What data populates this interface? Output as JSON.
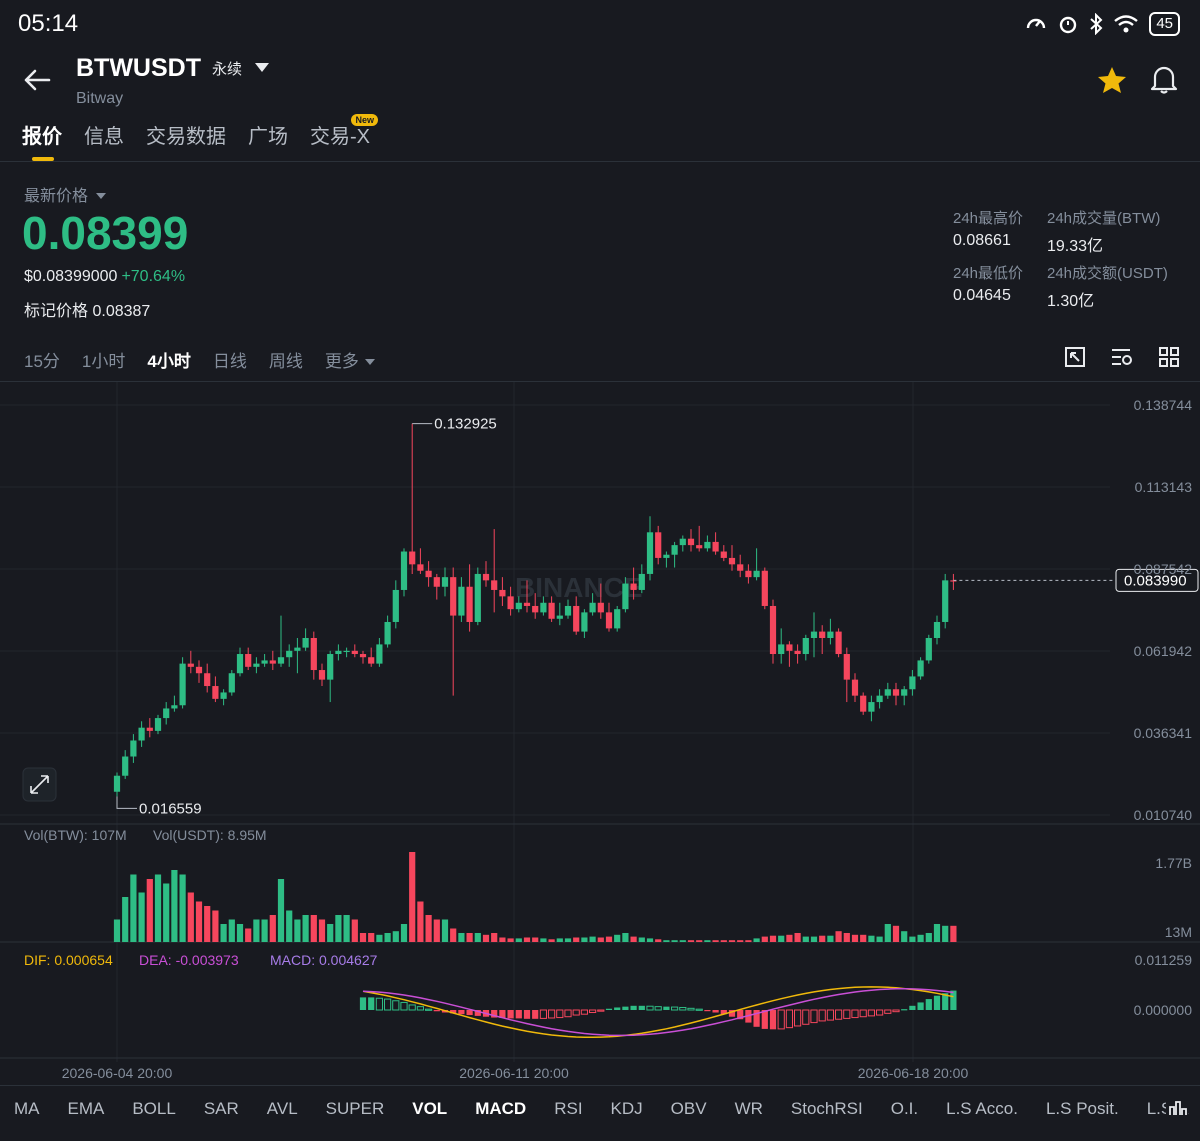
{
  "status": {
    "time": "05:14",
    "battery": "45"
  },
  "header": {
    "symbol": "BTWUSDT",
    "contract": "永续",
    "exchange_name": "Bitway"
  },
  "tabs": [
    {
      "label": "报价",
      "active": true
    },
    {
      "label": "信息"
    },
    {
      "label": "交易数据"
    },
    {
      "label": "广场"
    },
    {
      "label": "交易-X",
      "badge": "New"
    }
  ],
  "price": {
    "latest_label": "最新价格",
    "last": "0.08399",
    "usd": "$0.08399000",
    "change": "+70.64%",
    "mark_label": "标记价格",
    "mark": "0.08387",
    "up_color": "#2ebd85",
    "down_color": "#f6465d"
  },
  "stats": {
    "high_label": "24h最高价",
    "high": "0.08661",
    "low_label": "24h最低价",
    "low": "0.04645",
    "vol_base_label": "24h成交量(BTW)",
    "vol_base": "19.33亿",
    "vol_quote_label": "24h成交额(USDT)",
    "vol_quote": "1.30亿"
  },
  "intervals": [
    "15分",
    "1小时",
    "4小时",
    "日线",
    "周线"
  ],
  "active_interval": "4小时",
  "more_label": "更多",
  "icons": [
    "back-arrow-icon",
    "dropdown-caret-icon",
    "star-icon",
    "bell-icon",
    "fullscreen-icon",
    "settings-list-icon",
    "grid-icon",
    "expand-icon"
  ],
  "chart": {
    "watermark": "BINANCE",
    "price_axis": [
      "0.138744",
      "0.113143",
      "0.087542",
      "0.061942",
      "0.036341",
      "0.010740"
    ],
    "current_price_tag": "0.083990",
    "high_marker": "0.132925",
    "low_marker": "0.016559",
    "vol_label": "Vol(BTW): 107M",
    "vol_usdt_label": "Vol(USDT): 8.95M",
    "vol_axis": [
      "1.77B",
      "13M"
    ],
    "dif_label": "DIF: 0.000654",
    "dea_label": "DEA: -0.003973",
    "macd_label": "MACD: 0.004627",
    "macd_axis": [
      "0.011259",
      "0.000000"
    ],
    "time_labels": [
      "2026-06-04 20:00",
      "2026-06-11 20:00",
      "2026-06-18 20:00"
    ]
  },
  "chart_data": {
    "type": "candlestick",
    "note": "",
    "ylim": [
      0.01074,
      0.138744
    ],
    "ohlc": [
      [
        0.018,
        0.024,
        0.016559,
        0.023
      ],
      [
        0.023,
        0.031,
        0.022,
        0.029
      ],
      [
        0.029,
        0.036,
        0.027,
        0.034
      ],
      [
        0.034,
        0.04,
        0.032,
        0.038
      ],
      [
        0.038,
        0.041,
        0.035,
        0.037
      ],
      [
        0.037,
        0.042,
        0.036,
        0.041
      ],
      [
        0.041,
        0.046,
        0.039,
        0.044
      ],
      [
        0.044,
        0.048,
        0.043,
        0.045
      ],
      [
        0.045,
        0.06,
        0.044,
        0.058
      ],
      [
        0.058,
        0.062,
        0.055,
        0.057
      ],
      [
        0.057,
        0.059,
        0.052,
        0.055
      ],
      [
        0.055,
        0.058,
        0.049,
        0.051
      ],
      [
        0.051,
        0.054,
        0.046,
        0.047
      ],
      [
        0.047,
        0.05,
        0.045,
        0.049
      ],
      [
        0.049,
        0.056,
        0.048,
        0.055
      ],
      [
        0.055,
        0.063,
        0.054,
        0.061
      ],
      [
        0.061,
        0.063,
        0.056,
        0.057
      ],
      [
        0.057,
        0.06,
        0.055,
        0.058
      ],
      [
        0.058,
        0.061,
        0.057,
        0.059
      ],
      [
        0.059,
        0.062,
        0.056,
        0.058
      ],
      [
        0.058,
        0.073,
        0.057,
        0.06
      ],
      [
        0.06,
        0.064,
        0.057,
        0.062
      ],
      [
        0.062,
        0.066,
        0.055,
        0.063
      ],
      [
        0.063,
        0.069,
        0.062,
        0.066
      ],
      [
        0.066,
        0.068,
        0.053,
        0.056
      ],
      [
        0.056,
        0.058,
        0.051,
        0.053
      ],
      [
        0.053,
        0.062,
        0.046,
        0.061
      ],
      [
        0.061,
        0.064,
        0.059,
        0.062
      ],
      [
        0.062,
        0.063,
        0.06,
        0.062
      ],
      [
        0.062,
        0.064,
        0.06,
        0.061
      ],
      [
        0.061,
        0.062,
        0.058,
        0.06
      ],
      [
        0.06,
        0.063,
        0.057,
        0.058
      ],
      [
        0.058,
        0.066,
        0.057,
        0.064
      ],
      [
        0.064,
        0.073,
        0.063,
        0.071
      ],
      [
        0.071,
        0.084,
        0.069,
        0.081
      ],
      [
        0.081,
        0.094,
        0.079,
        0.093
      ],
      [
        0.093,
        0.132925,
        0.086,
        0.089
      ],
      [
        0.089,
        0.094,
        0.086,
        0.087
      ],
      [
        0.087,
        0.09,
        0.082,
        0.085
      ],
      [
        0.085,
        0.086,
        0.078,
        0.082
      ],
      [
        0.082,
        0.088,
        0.079,
        0.085
      ],
      [
        0.085,
        0.088,
        0.048,
        0.073
      ],
      [
        0.073,
        0.085,
        0.071,
        0.082
      ],
      [
        0.082,
        0.089,
        0.068,
        0.071
      ],
      [
        0.071,
        0.088,
        0.07,
        0.086
      ],
      [
        0.086,
        0.09,
        0.082,
        0.084
      ],
      [
        0.084,
        0.1,
        0.074,
        0.081
      ],
      [
        0.081,
        0.085,
        0.076,
        0.079
      ],
      [
        0.079,
        0.082,
        0.073,
        0.075
      ],
      [
        0.075,
        0.079,
        0.074,
        0.077
      ],
      [
        0.077,
        0.084,
        0.074,
        0.076
      ],
      [
        0.076,
        0.08,
        0.072,
        0.074
      ],
      [
        0.074,
        0.079,
        0.073,
        0.077
      ],
      [
        0.077,
        0.079,
        0.071,
        0.072
      ],
      [
        0.072,
        0.077,
        0.07,
        0.073
      ],
      [
        0.073,
        0.078,
        0.072,
        0.076
      ],
      [
        0.076,
        0.079,
        0.067,
        0.068
      ],
      [
        0.068,
        0.075,
        0.066,
        0.074
      ],
      [
        0.074,
        0.08,
        0.073,
        0.077
      ],
      [
        0.077,
        0.083,
        0.072,
        0.074
      ],
      [
        0.074,
        0.077,
        0.068,
        0.069
      ],
      [
        0.069,
        0.076,
        0.068,
        0.075
      ],
      [
        0.075,
        0.085,
        0.074,
        0.083
      ],
      [
        0.083,
        0.088,
        0.078,
        0.081
      ],
      [
        0.081,
        0.089,
        0.08,
        0.086
      ],
      [
        0.086,
        0.104,
        0.084,
        0.099
      ],
      [
        0.099,
        0.101,
        0.089,
        0.091
      ],
      [
        0.091,
        0.093,
        0.088,
        0.092
      ],
      [
        0.092,
        0.096,
        0.088,
        0.095
      ],
      [
        0.095,
        0.098,
        0.093,
        0.097
      ],
      [
        0.097,
        0.1,
        0.093,
        0.095
      ],
      [
        0.095,
        0.101,
        0.093,
        0.094
      ],
      [
        0.094,
        0.098,
        0.093,
        0.096
      ],
      [
        0.096,
        0.099,
        0.092,
        0.093
      ],
      [
        0.093,
        0.095,
        0.09,
        0.091
      ],
      [
        0.091,
        0.095,
        0.087,
        0.089
      ],
      [
        0.089,
        0.092,
        0.085,
        0.087
      ],
      [
        0.087,
        0.089,
        0.083,
        0.085
      ],
      [
        0.085,
        0.094,
        0.084,
        0.087
      ],
      [
        0.087,
        0.088,
        0.075,
        0.076
      ],
      [
        0.076,
        0.078,
        0.058,
        0.061
      ],
      [
        0.061,
        0.069,
        0.058,
        0.064
      ],
      [
        0.064,
        0.065,
        0.057,
        0.062
      ],
      [
        0.062,
        0.064,
        0.058,
        0.061
      ],
      [
        0.061,
        0.067,
        0.059,
        0.066
      ],
      [
        0.066,
        0.074,
        0.06,
        0.068
      ],
      [
        0.068,
        0.07,
        0.061,
        0.066
      ],
      [
        0.066,
        0.072,
        0.064,
        0.068
      ],
      [
        0.068,
        0.069,
        0.06,
        0.061
      ],
      [
        0.061,
        0.063,
        0.046,
        0.053
      ],
      [
        0.053,
        0.055,
        0.046,
        0.048
      ],
      [
        0.048,
        0.049,
        0.042,
        0.043
      ],
      [
        0.043,
        0.048,
        0.04,
        0.046
      ],
      [
        0.046,
        0.05,
        0.044,
        0.048
      ],
      [
        0.048,
        0.052,
        0.047,
        0.05
      ],
      [
        0.05,
        0.052,
        0.045,
        0.048
      ],
      [
        0.048,
        0.051,
        0.045,
        0.05
      ],
      [
        0.05,
        0.056,
        0.048,
        0.054
      ],
      [
        0.054,
        0.06,
        0.053,
        0.059
      ],
      [
        0.059,
        0.067,
        0.058,
        0.066
      ],
      [
        0.066,
        0.073,
        0.064,
        0.071
      ],
      [
        0.071,
        0.086,
        0.069,
        0.084
      ],
      [
        0.084,
        0.086,
        0.081,
        0.08399
      ]
    ],
    "volume_relative": [
      0.25,
      0.5,
      0.75,
      0.55,
      0.7,
      0.75,
      0.65,
      0.8,
      0.75,
      0.55,
      0.45,
      0.4,
      0.35,
      0.2,
      0.25,
      0.2,
      0.15,
      0.25,
      0.25,
      0.3,
      0.7,
      0.35,
      0.25,
      0.3,
      0.3,
      0.25,
      0.2,
      0.3,
      0.3,
      0.25,
      0.1,
      0.1,
      0.08,
      0.1,
      0.12,
      0.2,
      1.0,
      0.45,
      0.3,
      0.25,
      0.25,
      0.15,
      0.1,
      0.1,
      0.1,
      0.08,
      0.1,
      0.05,
      0.04,
      0.04,
      0.05,
      0.05,
      0.04,
      0.03,
      0.04,
      0.04,
      0.05,
      0.05,
      0.06,
      0.05,
      0.06,
      0.08,
      0.1,
      0.06,
      0.05,
      0.04,
      0.03,
      0.02,
      0.02,
      0.02,
      0.02,
      0.02,
      0.02,
      0.02,
      0.02,
      0.02,
      0.02,
      0.02,
      0.04,
      0.06,
      0.07,
      0.07,
      0.08,
      0.1,
      0.06,
      0.06,
      0.07,
      0.07,
      0.12,
      0.1,
      0.08,
      0.08,
      0.07,
      0.06,
      0.2,
      0.18,
      0.12,
      0.06,
      0.08,
      0.1,
      0.2,
      0.18,
      0.18,
      0.2,
      0.05
    ],
    "macd_hist": [
      0.003,
      0.003,
      0.0028,
      0.0026,
      0.0022,
      0.0018,
      0.0012,
      0.0008,
      0.0002,
      -0.0003,
      -0.0006,
      -0.0008,
      -0.001,
      -0.0012,
      -0.0014,
      -0.0016,
      -0.0018,
      -0.0019,
      -0.002,
      -0.002,
      -0.0021,
      -0.0021,
      -0.002,
      -0.0019,
      -0.0018,
      -0.0016,
      -0.0012,
      -0.001,
      -0.0006,
      -0.0002,
      0.0003,
      0.0006,
      0.0008,
      0.001,
      0.001,
      0.0009,
      0.0008,
      0.0008,
      0.0007,
      0.0006,
      0.0004,
      0.0002,
      -0.0001,
      -0.0006,
      -0.001,
      -0.0016,
      -0.0022,
      -0.003,
      -0.004,
      -0.0045,
      -0.0046,
      -0.0045,
      -0.0042,
      -0.0038,
      -0.0034,
      -0.003,
      -0.0026,
      -0.0024,
      -0.0022,
      -0.002,
      -0.0018,
      -0.0016,
      -0.0014,
      -0.0012,
      -0.0008,
      -0.0004,
      0.0002,
      0.001,
      0.0018,
      0.0026,
      0.0034,
      0.004,
      0.004627
    ]
  },
  "indicator_tabs": [
    "MA",
    "EMA",
    "BOLL",
    "SAR",
    "AVL",
    "SUPER",
    "VOL",
    "MACD",
    "RSI",
    "KDJ",
    "OBV",
    "WR",
    "StochRSI",
    "O.I.",
    "L.S Acco.",
    "L.S Posit.",
    "L.S R"
  ],
  "active_indicators": [
    "VOL",
    "MACD"
  ]
}
